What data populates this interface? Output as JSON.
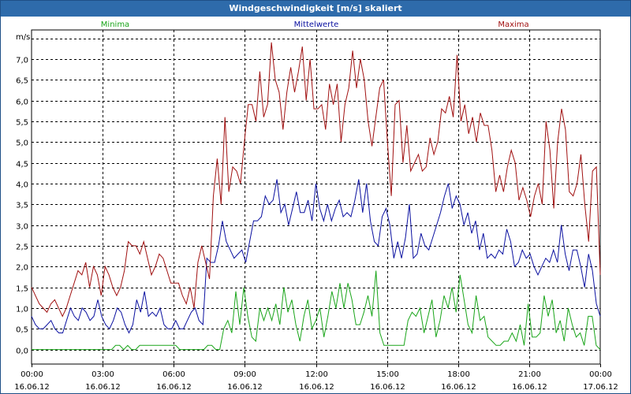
{
  "window": {
    "title": "Windgeschwindigkeit [m/s] skaliert"
  },
  "chart_data": {
    "type": "line",
    "title": "Windgeschwindigkeit [m/s] skaliert",
    "ylabel": "m/s",
    "xlabel": "",
    "ylim": [
      -0.35,
      7.7
    ],
    "xlim": [
      0,
      24
    ],
    "y_ticks": [
      "0,0",
      "0,5",
      "1,0",
      "1,5",
      "2,0",
      "2,5",
      "3,0",
      "3,5",
      "4,0",
      "4,5",
      "5,0",
      "5,5",
      "6,0",
      "6,5",
      "7,0"
    ],
    "y_tick_values": [
      0,
      0.5,
      1,
      1.5,
      2,
      2.5,
      3,
      3.5,
      4,
      4.5,
      5,
      5.5,
      6,
      6.5,
      7
    ],
    "x_ticks": [
      {
        "time": "00:00",
        "date": "16.06.12",
        "hour": 0
      },
      {
        "time": "03:00",
        "date": "16.06.12",
        "hour": 3
      },
      {
        "time": "06:00",
        "date": "16.06.12",
        "hour": 6
      },
      {
        "time": "09:00",
        "date": "16.06.12",
        "hour": 9
      },
      {
        "time": "12:00",
        "date": "16.06.12",
        "hour": 12
      },
      {
        "time": "15:00",
        "date": "16.06.12",
        "hour": 15
      },
      {
        "time": "18:00",
        "date": "16.06.12",
        "hour": 18
      },
      {
        "time": "21:00",
        "date": "16.06.12",
        "hour": 21
      },
      {
        "time": "00:00",
        "date": "17.06.12",
        "hour": 24
      }
    ],
    "grid": true,
    "colors": {
      "min": "#1aa51a",
      "mean": "#0a10a0",
      "max": "#a01010",
      "grid": "#000000"
    },
    "series": [
      {
        "name": "Minima",
        "key": "min",
        "values": [
          0.0,
          0.0,
          0.0,
          0.0,
          0.0,
          0.0,
          0.0,
          0.0,
          0.0,
          0.0,
          0.0,
          0.0,
          0.0,
          0.0,
          0.0,
          0.0,
          0.0,
          0.0,
          0.0,
          0.0,
          0.0,
          0.1,
          0.1,
          0.0,
          0.1,
          0.0,
          0.0,
          0.1,
          0.1,
          0.1,
          0.1,
          0.1,
          0.1,
          0.1,
          0.1,
          0.1,
          0.1,
          0.0,
          0.0,
          0.0,
          0.0,
          0.0,
          0.0,
          0.0,
          0.1,
          0.1,
          0.0,
          0.0,
          0.5,
          0.7,
          0.4,
          1.4,
          0.6,
          1.5,
          0.8,
          0.3,
          0.2,
          1.0,
          0.7,
          1.0,
          0.7,
          1.1,
          0.6,
          1.5,
          0.9,
          1.2,
          0.6,
          0.2,
          0.8,
          1.2,
          0.5,
          0.7,
          1.0,
          0.3,
          0.8,
          1.4,
          1.0,
          1.6,
          1.0,
          1.6,
          1.2,
          0.6,
          0.6,
          0.9,
          1.3,
          0.8,
          1.9,
          0.4,
          0.1,
          0.1,
          0.1,
          0.1,
          0.1,
          0.1,
          0.7,
          0.9,
          0.8,
          1.0,
          0.4,
          0.8,
          1.2,
          0.3,
          0.7,
          1.3,
          1.0,
          1.5,
          0.9,
          1.8,
          1.2,
          0.6,
          0.4,
          1.3,
          0.7,
          0.8,
          0.3,
          0.2,
          0.1,
          0.1,
          0.2,
          0.2,
          0.4,
          0.2,
          0.6,
          0.1,
          1.1,
          0.3,
          0.3,
          0.4,
          1.3,
          0.8,
          1.2,
          0.4,
          0.7,
          0.2,
          1.0,
          0.6,
          0.3,
          0.4,
          0.1,
          0.8,
          0.8,
          0.1,
          0.0
        ]
      },
      {
        "name": "Mittelwerte",
        "key": "mean",
        "values": [
          0.8,
          0.6,
          0.5,
          0.5,
          0.6,
          0.7,
          0.5,
          0.4,
          0.4,
          0.7,
          1.0,
          0.8,
          0.7,
          1.0,
          0.9,
          0.7,
          0.8,
          1.2,
          0.8,
          0.6,
          0.5,
          0.7,
          1.0,
          0.9,
          0.6,
          0.4,
          0.6,
          1.2,
          0.9,
          1.4,
          0.8,
          0.9,
          0.8,
          1.0,
          0.6,
          0.5,
          0.5,
          0.7,
          0.5,
          0.5,
          0.7,
          0.9,
          1.0,
          0.7,
          0.6,
          2.2,
          2.1,
          2.1,
          2.5,
          3.1,
          2.6,
          2.4,
          2.2,
          2.3,
          2.4,
          2.1,
          2.6,
          3.1,
          3.1,
          3.2,
          3.7,
          3.5,
          3.6,
          4.1,
          3.3,
          3.5,
          3.0,
          3.4,
          3.8,
          3.3,
          3.3,
          3.6,
          3.1,
          4.0,
          3.4,
          3.1,
          3.5,
          3.1,
          3.4,
          3.6,
          3.2,
          3.3,
          3.2,
          3.6,
          4.1,
          3.3,
          4.0,
          3.1,
          2.6,
          2.5,
          3.2,
          3.4,
          3.0,
          2.2,
          2.6,
          2.2,
          2.7,
          3.5,
          2.2,
          2.3,
          2.8,
          2.5,
          2.4,
          2.7,
          3.0,
          3.3,
          3.7,
          4.0,
          3.4,
          3.7,
          3.5,
          3.0,
          3.3,
          2.8,
          3.1,
          2.4,
          2.8,
          2.2,
          2.3,
          2.2,
          2.4,
          2.3,
          2.9,
          2.6,
          2.0,
          2.1,
          2.4,
          2.2,
          2.3,
          2.0,
          1.8,
          2.0,
          2.2,
          2.1,
          2.4,
          2.1,
          3.0,
          2.3,
          1.9,
          2.4,
          2.4,
          2.0,
          1.5,
          2.3,
          1.9,
          1.1,
          0.8
        ]
      },
      {
        "name": "Maxima",
        "key": "max",
        "values": [
          1.5,
          1.3,
          1.1,
          1.0,
          0.9,
          1.1,
          1.2,
          1.0,
          0.8,
          1.0,
          1.3,
          1.6,
          1.9,
          1.8,
          2.1,
          1.5,
          2.0,
          1.8,
          1.3,
          2.0,
          1.8,
          1.5,
          1.3,
          1.5,
          1.9,
          2.6,
          2.5,
          2.5,
          2.3,
          2.6,
          2.2,
          1.8,
          2.0,
          2.3,
          2.2,
          1.9,
          1.6,
          1.6,
          1.6,
          1.3,
          1.1,
          1.5,
          1.0,
          2.1,
          2.5,
          2.1,
          1.7,
          3.7,
          4.6,
          3.5,
          5.6,
          3.8,
          4.4,
          4.3,
          4.0,
          5.0,
          5.9,
          5.9,
          5.5,
          6.7,
          5.6,
          5.9,
          7.4,
          6.5,
          6.2,
          5.3,
          6.2,
          6.8,
          6.2,
          6.7,
          7.3,
          6.0,
          7.0,
          5.8,
          5.8,
          5.9,
          5.3,
          6.4,
          5.9,
          6.4,
          5.0,
          5.9,
          6.3,
          7.2,
          6.3,
          7.0,
          6.5,
          5.5,
          4.9,
          5.6,
          6.3,
          6.5,
          5.0,
          3.7,
          5.9,
          6.0,
          4.5,
          5.4,
          4.3,
          4.5,
          4.7,
          4.3,
          4.4,
          5.1,
          4.7,
          5.0,
          5.8,
          5.7,
          6.1,
          5.6,
          7.1,
          5.5,
          5.9,
          5.2,
          5.6,
          5.0,
          5.7,
          5.4,
          5.4,
          4.8,
          3.8,
          4.2,
          3.8,
          4.4,
          4.8,
          4.5,
          3.6,
          3.9,
          3.6,
          3.2,
          3.7,
          4.0,
          3.5,
          5.5,
          4.8,
          3.4,
          5.0,
          5.8,
          5.3,
          3.8,
          3.7,
          4.0,
          4.7,
          3.5,
          2.6,
          4.3,
          4.4,
          1.8
        ]
      }
    ]
  }
}
